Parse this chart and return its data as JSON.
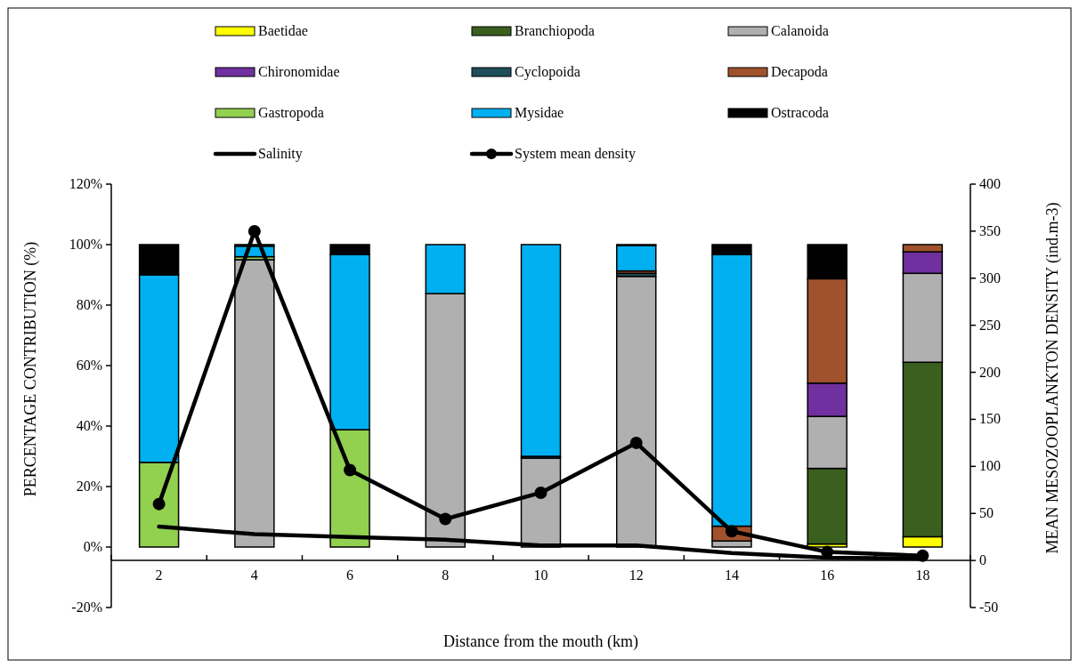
{
  "chart_data": {
    "type": "bar",
    "stacked": true,
    "xlabel": "Distance from the mouth (km)",
    "ylabel": "PERCENTAGE CONTRIBUTION (%)",
    "y2label": "MEAN MESOZOOPLANKTON DENSITY (ind.m-3)",
    "categories": [
      "2",
      "4",
      "6",
      "8",
      "10",
      "12",
      "14",
      "16",
      "18"
    ],
    "ylim": [
      -20,
      120
    ],
    "yticks": [
      {
        "value": -20,
        "label": "-20%"
      },
      {
        "value": 0,
        "label": "0%"
      },
      {
        "value": 20,
        "label": "20%"
      },
      {
        "value": 40,
        "label": "40%"
      },
      {
        "value": 60,
        "label": "60%"
      },
      {
        "value": 80,
        "label": "80%"
      },
      {
        "value": 100,
        "label": "100%"
      },
      {
        "value": 120,
        "label": "120%"
      }
    ],
    "y2lim": [
      -50,
      400
    ],
    "y2ticks": [
      -50,
      0,
      50,
      100,
      150,
      200,
      250,
      300,
      350,
      400
    ],
    "legend": "top",
    "grid": false,
    "series": [
      {
        "name": "Baetidae",
        "color": "#ffff00",
        "values": [
          0,
          0,
          0,
          0,
          0,
          0,
          0,
          1,
          3.4
        ]
      },
      {
        "name": "Branchiopoda",
        "color": "#3a5f1e",
        "values": [
          0,
          0,
          0,
          0,
          0,
          0,
          0,
          25,
          57.7
        ]
      },
      {
        "name": "Calanoida",
        "color": "#b0b0b0",
        "values": [
          0,
          95,
          0,
          83.8,
          29.4,
          89.5,
          2,
          17.2,
          29.4
        ]
      },
      {
        "name": "Chironomidae",
        "color": "#7030a0",
        "values": [
          0,
          0,
          0,
          0,
          0,
          0,
          0,
          11,
          7.1
        ]
      },
      {
        "name": "Cyclopoida",
        "color": "#1f4e5a",
        "values": [
          0,
          0,
          0,
          0,
          0.6,
          1,
          0,
          0,
          0
        ]
      },
      {
        "name": "Decapoda",
        "color": "#a0522d",
        "values": [
          0,
          0,
          0,
          0,
          0,
          0.8,
          4.9,
          34.5,
          2.4
        ]
      },
      {
        "name": "Gastropoda",
        "color": "#92d050",
        "values": [
          28,
          1,
          38.8,
          0,
          0,
          0,
          0,
          0,
          0
        ]
      },
      {
        "name": "Mysidae",
        "color": "#00b0f0",
        "values": [
          62,
          3.5,
          57.9,
          16.2,
          70,
          8.4,
          89.8,
          0,
          0
        ]
      },
      {
        "name": "Ostracoda",
        "color": "#000000",
        "values": [
          10,
          0.5,
          3.3,
          0,
          0,
          0.3,
          3.3,
          11.3,
          0
        ]
      },
      {
        "name": "Salinity",
        "type": "line",
        "axis": "y2",
        "color": "#000000",
        "marker": "none",
        "values": [
          36,
          28,
          25,
          22,
          16,
          16,
          8,
          3,
          2
        ]
      },
      {
        "name": "System mean density",
        "type": "line",
        "axis": "y2",
        "color": "#000000",
        "marker": "circle",
        "values": [
          60,
          350,
          96,
          44,
          72,
          125,
          31,
          9,
          5
        ]
      }
    ]
  }
}
